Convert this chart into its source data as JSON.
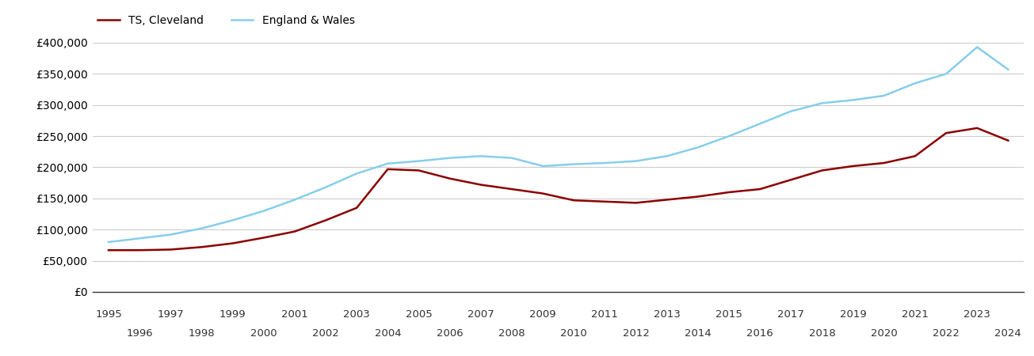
{
  "cleveland_years": [
    1995,
    1996,
    1997,
    1998,
    1999,
    2000,
    2001,
    2002,
    2003,
    2004,
    2005,
    2006,
    2007,
    2008,
    2009,
    2010,
    2011,
    2012,
    2013,
    2014,
    2015,
    2016,
    2017,
    2018,
    2019,
    2020,
    2021,
    2022,
    2023,
    2024
  ],
  "cleveland_values": [
    67000,
    67000,
    68000,
    72000,
    78000,
    87000,
    97000,
    115000,
    135000,
    197000,
    195000,
    182000,
    172000,
    165000,
    158000,
    147000,
    145000,
    143000,
    148000,
    153000,
    160000,
    165000,
    180000,
    195000,
    202000,
    207000,
    218000,
    255000,
    263000,
    243000
  ],
  "ew_years": [
    1995,
    1996,
    1997,
    1998,
    1999,
    2000,
    2001,
    2002,
    2003,
    2004,
    2005,
    2006,
    2007,
    2008,
    2009,
    2010,
    2011,
    2012,
    2013,
    2014,
    2015,
    2016,
    2017,
    2018,
    2019,
    2020,
    2021,
    2022,
    2023,
    2024
  ],
  "ew_values": [
    80000,
    86000,
    92000,
    102000,
    115000,
    130000,
    148000,
    168000,
    190000,
    206000,
    210000,
    215000,
    218000,
    215000,
    202000,
    205000,
    207000,
    210000,
    218000,
    232000,
    250000,
    270000,
    290000,
    303000,
    308000,
    315000,
    335000,
    350000,
    393000,
    357000
  ],
  "cleveland_color": "#8B0000",
  "ew_color": "#87CEEB",
  "cleveland_label": "TS, Cleveland",
  "ew_label": "England & Wales",
  "ylim": [
    0,
    400000
  ],
  "yticks": [
    0,
    50000,
    100000,
    150000,
    200000,
    250000,
    300000,
    350000,
    400000
  ],
  "ytick_labels": [
    "£0",
    "£50,000",
    "£100,000",
    "£150,000",
    "£200,000",
    "£250,000",
    "£300,000",
    "£350,000",
    "£400,000"
  ],
  "odd_years": [
    1995,
    1997,
    1999,
    2001,
    2003,
    2005,
    2007,
    2009,
    2011,
    2013,
    2015,
    2017,
    2019,
    2021,
    2023
  ],
  "even_years": [
    1996,
    1998,
    2000,
    2002,
    2004,
    2006,
    2008,
    2010,
    2012,
    2014,
    2016,
    2018,
    2020,
    2022,
    2024
  ],
  "background_color": "#ffffff",
  "grid_color": "#cccccc",
  "line_width": 1.8,
  "legend_fontsize": 10,
  "tick_fontsize": 10
}
